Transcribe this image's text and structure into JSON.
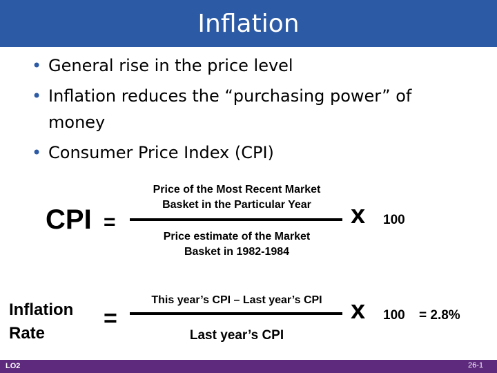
{
  "slide": {
    "title": "Inflation",
    "bullets": [
      "General rise in the price level",
      "Inflation reduces the “purchasing power” of money",
      "Consumer Price Index (CPI)"
    ]
  },
  "cpi_formula": {
    "lhs": "CPI",
    "equals": "=",
    "numerator_line1": "Price of the Most Recent Market",
    "numerator_line2": "Basket in the Particular Year",
    "denominator_line1": "Price estimate of the Market",
    "denominator_line2": "Basket in 1982-1984",
    "times": "x",
    "multiplier": "100"
  },
  "inflation_formula": {
    "lhs_line1": "Inflation",
    "lhs_line2": "Rate",
    "equals": "=",
    "numerator": "This year’s CPI – Last year’s CPI",
    "denominator": "Last year’s CPI",
    "times": "x",
    "multiplier": "100",
    "result": "= 2.8%"
  },
  "footer": {
    "left": "LO2",
    "right": "26-1"
  },
  "colors": {
    "title_bar": "#2c5aa4",
    "bullet": "#2c5aa4",
    "footer_bar": "#5e2a7e"
  }
}
